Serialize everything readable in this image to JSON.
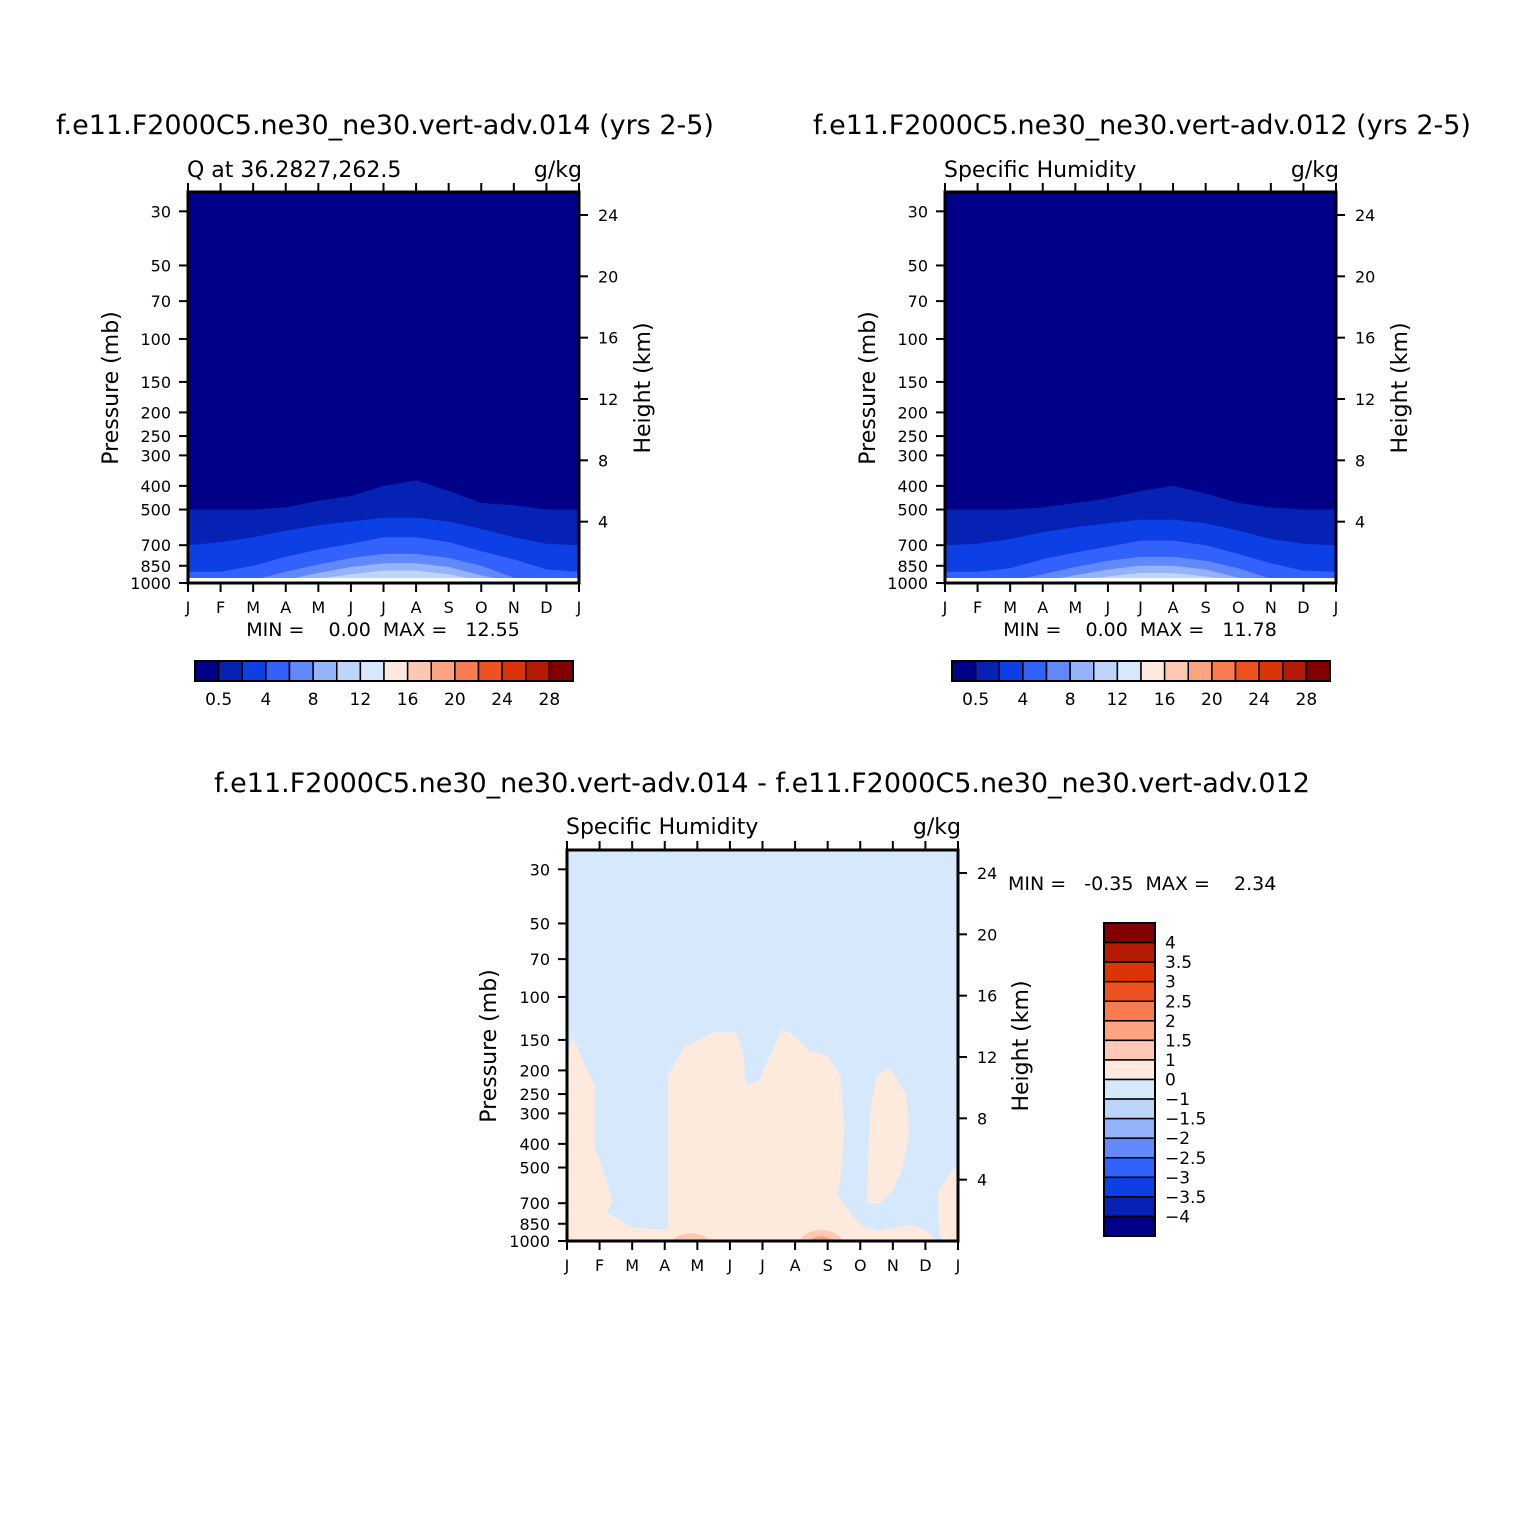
{
  "chart_data": [
    {
      "type": "heatmap",
      "title": "f.e11.F2000C5.ne30_ne30.vert-adv.014 (yrs 2-5)",
      "left_label": "Q at 36.2827,262.5",
      "units": "g/kg",
      "ylabel": "Pressure (mb)",
      "y2label": "Height (km)",
      "x_ticks": [
        "J",
        "F",
        "M",
        "A",
        "M",
        "J",
        "J",
        "A",
        "S",
        "O",
        "N",
        "D",
        "J"
      ],
      "pressure_ticks": [
        30,
        50,
        70,
        100,
        150,
        200,
        250,
        300,
        400,
        500,
        700,
        850,
        1000
      ],
      "height_ticks": [
        24,
        20,
        16,
        12,
        8,
        4
      ],
      "ylim": [
        1000,
        25
      ],
      "y_scale": "log",
      "stats": "MIN =    0.00  MAX =   12.55",
      "min": 0.0,
      "max": 12.55,
      "contour_levels": [
        0.5,
        2,
        4,
        6,
        8,
        10,
        12,
        14,
        16,
        18,
        20,
        22,
        24,
        26,
        28
      ],
      "colorbar_labels": [
        "0.5",
        "4",
        "8",
        "12",
        "16",
        "20",
        "24",
        "28"
      ],
      "level_boundaries_mb": [
        [
          500,
          500,
          500,
          490,
          460,
          440,
          400,
          380,
          420,
          470,
          480,
          500,
          500
        ],
        [
          700,
          680,
          650,
          610,
          580,
          560,
          540,
          540,
          560,
          600,
          650,
          690,
          700
        ],
        [
          900,
          900,
          850,
          780,
          730,
          690,
          650,
          650,
          680,
          740,
          800,
          880,
          900
        ],
        [
          1000,
          990,
          970,
          900,
          840,
          790,
          760,
          760,
          790,
          850,
          950,
          1000,
          1000
        ],
        [
          1000,
          1000,
          1000,
          970,
          910,
          860,
          830,
          830,
          860,
          930,
          1000,
          1000,
          1000
        ],
        [
          1000,
          1000,
          1000,
          1000,
          960,
          920,
          890,
          890,
          920,
          980,
          1000,
          1000,
          1000
        ]
      ]
    },
    {
      "type": "heatmap",
      "title": "f.e11.F2000C5.ne30_ne30.vert-adv.012 (yrs 2-5)",
      "left_label": "Specific Humidity",
      "units": "g/kg",
      "ylabel": "Pressure (mb)",
      "y2label": "Height (km)",
      "x_ticks": [
        "J",
        "F",
        "M",
        "A",
        "M",
        "J",
        "J",
        "A",
        "S",
        "O",
        "N",
        "D",
        "J"
      ],
      "pressure_ticks": [
        30,
        50,
        70,
        100,
        150,
        200,
        250,
        300,
        400,
        500,
        700,
        850,
        1000
      ],
      "height_ticks": [
        24,
        20,
        16,
        12,
        8,
        4
      ],
      "ylim": [
        1000,
        25
      ],
      "y_scale": "log",
      "stats": "MIN =    0.00  MAX =   11.78",
      "min": 0.0,
      "max": 11.78,
      "contour_levels": [
        0.5,
        2,
        4,
        6,
        8,
        10,
        12,
        14,
        16,
        18,
        20,
        22,
        24,
        26,
        28
      ],
      "colorbar_labels": [
        "0.5",
        "4",
        "8",
        "12",
        "16",
        "20",
        "24",
        "28"
      ],
      "level_boundaries_mb": [
        [
          500,
          500,
          500,
          490,
          470,
          450,
          420,
          400,
          430,
          470,
          490,
          500,
          500
        ],
        [
          700,
          690,
          660,
          620,
          590,
          570,
          550,
          550,
          570,
          610,
          660,
          690,
          700
        ],
        [
          900,
          900,
          870,
          800,
          750,
          710,
          670,
          670,
          700,
          760,
          830,
          890,
          900
        ],
        [
          1000,
          1000,
          980,
          920,
          860,
          810,
          780,
          780,
          810,
          870,
          960,
          1000,
          1000
        ],
        [
          1000,
          1000,
          1000,
          980,
          930,
          880,
          850,
          850,
          880,
          950,
          1000,
          1000,
          1000
        ],
        [
          1000,
          1000,
          1000,
          1000,
          980,
          940,
          910,
          910,
          940,
          1000,
          1000,
          1000,
          1000
        ]
      ]
    },
    {
      "type": "heatmap",
      "title": "f.e11.F2000C5.ne30_ne30.vert-adv.014 - f.e11.F2000C5.ne30_ne30.vert-adv.012",
      "left_label": "Specific Humidity",
      "units": "g/kg",
      "ylabel": "Pressure (mb)",
      "y2label": "Height (km)",
      "x_ticks": [
        "J",
        "F",
        "M",
        "A",
        "M",
        "J",
        "J",
        "A",
        "S",
        "O",
        "N",
        "D",
        "J"
      ],
      "pressure_ticks": [
        30,
        50,
        70,
        100,
        150,
        200,
        250,
        300,
        400,
        500,
        700,
        850,
        1000
      ],
      "height_ticks": [
        24,
        20,
        16,
        12,
        8,
        4
      ],
      "ylim": [
        1000,
        25
      ],
      "y_scale": "log",
      "stats": "MIN =   -0.35  MAX =    2.34",
      "min": -0.35,
      "max": 2.34,
      "contour_levels": [
        -4,
        -3.5,
        -3,
        -2.5,
        -2,
        -1.5,
        -1,
        0,
        1,
        1.5,
        2,
        2.5,
        3,
        3.5,
        4
      ],
      "colorbar_labels": [
        "4",
        "3.5",
        "3",
        "2.5",
        "2",
        "1.5",
        "1",
        "0",
        "−1",
        "−1.5",
        "−2",
        "−2.5",
        "−3",
        "−3.5",
        "−4"
      ],
      "positive_regions": [
        [
          [
            0.0,
            1000
          ],
          [
            0.0,
            190
          ],
          [
            0.15,
            145
          ],
          [
            0.55,
            190
          ],
          [
            0.85,
            230
          ],
          [
            0.85,
            420
          ],
          [
            1.0,
            460
          ],
          [
            1.4,
            680
          ],
          [
            1.3,
            730
          ],
          [
            1.2,
            760
          ],
          [
            2.0,
            880
          ],
          [
            4.5,
            930
          ],
          [
            6.0,
            930
          ],
          [
            6.5,
            950
          ],
          [
            8.0,
            960
          ],
          [
            9.0,
            940
          ],
          [
            10.5,
            860
          ],
          [
            11.0,
            900
          ],
          [
            11.4,
            1000
          ]
        ],
        [
          [
            3.1,
            500
          ],
          [
            3.1,
            210
          ],
          [
            3.6,
            160
          ],
          [
            4.5,
            140
          ],
          [
            5.2,
            140
          ],
          [
            5.4,
            170
          ],
          [
            5.5,
            230
          ],
          [
            5.9,
            220
          ],
          [
            6.6,
            135
          ],
          [
            7.0,
            145
          ],
          [
            7.4,
            165
          ],
          [
            8.0,
            175
          ],
          [
            8.4,
            210
          ],
          [
            8.5,
            360
          ],
          [
            8.4,
            540
          ],
          [
            8.3,
            650
          ],
          [
            8.8,
            800
          ],
          [
            9.1,
            880
          ],
          [
            9.5,
            900
          ],
          [
            10.0,
            1000
          ],
          [
            3.1,
            1000
          ]
        ],
        [
          [
            9.2,
            700
          ],
          [
            9.3,
            300
          ],
          [
            9.5,
            210
          ],
          [
            9.9,
            195
          ],
          [
            10.4,
            250
          ],
          [
            10.5,
            360
          ],
          [
            10.3,
            500
          ],
          [
            10.0,
            620
          ],
          [
            9.6,
            700
          ]
        ],
        [
          [
            11.4,
            620
          ],
          [
            12.0,
            480
          ],
          [
            12.0,
            1000
          ],
          [
            11.5,
            1000
          ],
          [
            11.4,
            870
          ]
        ]
      ],
      "pos_blobs": [
        {
          "month": 3.8,
          "mb": 985,
          "value": 1.2
        },
        {
          "month": 7.8,
          "mb": 955,
          "value": 1.8
        }
      ]
    }
  ]
}
